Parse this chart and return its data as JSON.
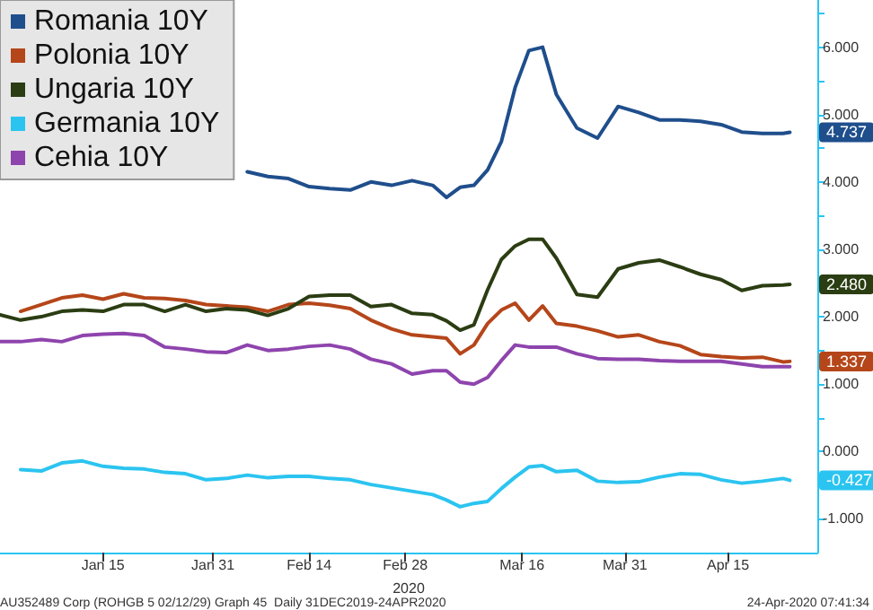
{
  "chart_data": {
    "type": "line",
    "x": [
      "2019-12-31",
      "2020-01-03",
      "2020-01-06",
      "2020-01-09",
      "2020-01-12",
      "2020-01-15",
      "2020-01-18",
      "2020-01-21",
      "2020-01-24",
      "2020-01-27",
      "2020-01-30",
      "2020-02-02",
      "2020-02-05",
      "2020-02-08",
      "2020-02-11",
      "2020-02-14",
      "2020-02-17",
      "2020-02-20",
      "2020-02-23",
      "2020-02-26",
      "2020-02-29",
      "2020-03-03",
      "2020-03-05",
      "2020-03-07",
      "2020-03-09",
      "2020-03-11",
      "2020-03-13",
      "2020-03-15",
      "2020-03-17",
      "2020-03-19",
      "2020-03-21",
      "2020-03-24",
      "2020-03-27",
      "2020-03-30",
      "2020-04-02",
      "2020-04-05",
      "2020-04-08",
      "2020-04-11",
      "2020-04-14",
      "2020-04-17",
      "2020-04-20",
      "2020-04-23",
      "2020-04-24"
    ],
    "series": [
      {
        "name": "Romania 10Y",
        "color": "#1f4e8c",
        "values": [
          null,
          null,
          null,
          null,
          null,
          null,
          null,
          null,
          null,
          null,
          null,
          null,
          4.15,
          4.08,
          4.05,
          3.93,
          3.9,
          3.88,
          4.0,
          3.95,
          4.02,
          3.95,
          3.77,
          3.92,
          3.95,
          4.18,
          4.6,
          5.4,
          5.95,
          6.0,
          5.3,
          4.8,
          4.65,
          5.12,
          5.03,
          4.92,
          4.92,
          4.9,
          4.85,
          4.74,
          4.72,
          4.72,
          4.737
        ]
      },
      {
        "name": "Polonia 10Y",
        "color": "#b5461a",
        "values": [
          null,
          2.08,
          2.18,
          2.28,
          2.32,
          2.26,
          2.34,
          2.28,
          2.27,
          2.24,
          2.18,
          2.16,
          2.14,
          2.08,
          2.18,
          2.2,
          2.17,
          2.12,
          1.95,
          1.82,
          1.73,
          1.7,
          1.68,
          1.45,
          1.58,
          1.9,
          2.1,
          2.2,
          1.95,
          2.16,
          1.9,
          1.86,
          1.79,
          1.7,
          1.73,
          1.63,
          1.57,
          1.44,
          1.41,
          1.39,
          1.4,
          1.33,
          1.337
        ]
      },
      {
        "name": "Ungaria 10Y",
        "color": "#2b3d12",
        "values": [
          2.03,
          1.95,
          2.0,
          2.08,
          2.1,
          2.08,
          2.18,
          2.18,
          2.08,
          2.18,
          2.08,
          2.12,
          2.1,
          2.02,
          2.12,
          2.3,
          2.32,
          2.32,
          2.15,
          2.18,
          2.05,
          2.03,
          1.94,
          1.8,
          1.88,
          2.4,
          2.85,
          3.05,
          3.15,
          3.15,
          2.87,
          2.33,
          2.29,
          2.71,
          2.8,
          2.84,
          2.74,
          2.63,
          2.55,
          2.39,
          2.46,
          2.47,
          2.48
        ]
      },
      {
        "name": "Germania 10Y",
        "color": "#2bc4f0",
        "values": [
          null,
          -0.27,
          -0.29,
          -0.17,
          -0.14,
          -0.22,
          -0.25,
          -0.26,
          -0.31,
          -0.33,
          -0.42,
          -0.4,
          -0.35,
          -0.39,
          -0.37,
          -0.37,
          -0.4,
          -0.42,
          -0.49,
          -0.54,
          -0.59,
          -0.64,
          -0.72,
          -0.82,
          -0.77,
          -0.74,
          -0.55,
          -0.38,
          -0.23,
          -0.21,
          -0.3,
          -0.28,
          -0.44,
          -0.46,
          -0.45,
          -0.38,
          -0.33,
          -0.34,
          -0.42,
          -0.47,
          -0.44,
          -0.4,
          -0.427
        ]
      },
      {
        "name": "Cehia 10Y",
        "color": "#8e44ad",
        "values": [
          1.63,
          1.63,
          1.66,
          1.63,
          1.72,
          1.74,
          1.75,
          1.72,
          1.55,
          1.52,
          1.48,
          1.47,
          1.58,
          1.5,
          1.52,
          1.56,
          1.58,
          1.52,
          1.37,
          1.3,
          1.15,
          1.2,
          1.2,
          1.03,
          1.0,
          1.1,
          1.35,
          1.58,
          1.55,
          1.55,
          1.55,
          1.45,
          1.38,
          1.37,
          1.37,
          1.35,
          1.34,
          1.34,
          1.34,
          1.3,
          1.26,
          1.26,
          1.26
        ]
      }
    ],
    "xlabel": "2020",
    "xlim": [
      "2019-12-31",
      "2020-04-28"
    ],
    "xticks": [
      {
        "value": "2020-01-15",
        "label": "Jan 15"
      },
      {
        "value": "2020-01-31",
        "label": "Jan 31"
      },
      {
        "value": "2020-02-14",
        "label": "Feb 14"
      },
      {
        "value": "2020-02-28",
        "label": "Feb 28"
      },
      {
        "value": "2020-03-16",
        "label": "Mar 16"
      },
      {
        "value": "2020-03-31",
        "label": "Mar 31"
      },
      {
        "value": "2020-04-15",
        "label": "Apr 15"
      }
    ],
    "ylim": [
      -1.5,
      6.7
    ],
    "yticks": [
      {
        "value": -1,
        "label": "-1.000"
      },
      {
        "value": -0.5,
        "label": null
      },
      {
        "value": 0,
        "label": "0.000"
      },
      {
        "value": 0.5,
        "label": null
      },
      {
        "value": 1,
        "label": "1.000"
      },
      {
        "value": 1.5,
        "label": null
      },
      {
        "value": 2,
        "label": "2.000"
      },
      {
        "value": 2.5,
        "label": null
      },
      {
        "value": 3,
        "label": "3.000"
      },
      {
        "value": 3.5,
        "label": null
      },
      {
        "value": 4,
        "label": "4.000"
      },
      {
        "value": 4.5,
        "label": null
      },
      {
        "value": 5,
        "label": "5.000"
      },
      {
        "value": 5.5,
        "label": null
      },
      {
        "value": 6,
        "label": "6.000"
      },
      {
        "value": 6.5,
        "label": null
      }
    ],
    "annotations": [
      {
        "text": "4.737",
        "x": "2020-04-24",
        "y": 4.737
      },
      {
        "text": "2.480",
        "x": "2020-04-24",
        "y": 2.48
      },
      {
        "text": "1.337",
        "x": "2020-04-24",
        "y": 1.337
      },
      {
        "text": "-0.427",
        "x": "2020-04-24",
        "y": -0.427
      },
      "AU352489 Corp (ROHGB 5 02/12/29) Graph 45  Daily 31DEC2019-24APR2020",
      "24-Apr-2020 07:41:34"
    ],
    "grid": false,
    "legend": "top left",
    "marker": "none",
    "line_style": "solid"
  }
}
